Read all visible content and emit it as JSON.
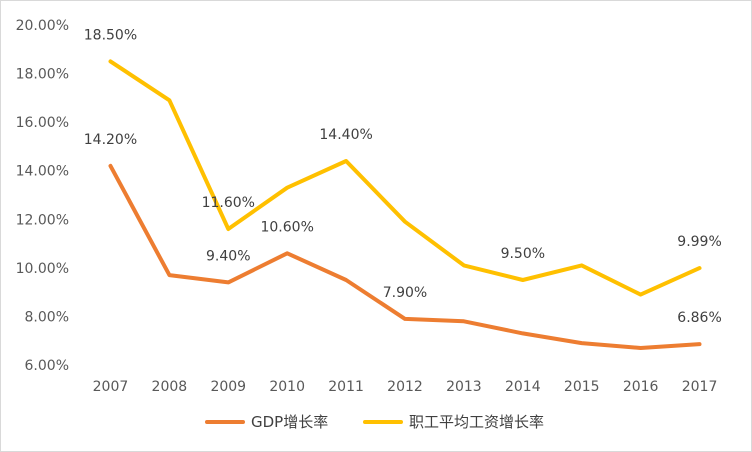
{
  "chart_data": {
    "type": "line",
    "title": "",
    "xlabel": "",
    "ylabel": "",
    "categories": [
      "2007",
      "2008",
      "2009",
      "2010",
      "2011",
      "2012",
      "2013",
      "2014",
      "2015",
      "2016",
      "2017"
    ],
    "ylim": [
      6.0,
      20.0
    ],
    "yticks": [
      6,
      8,
      10,
      12,
      14,
      16,
      18,
      20
    ],
    "ytick_labels": [
      "6.00%",
      "8.00%",
      "10.00%",
      "12.00%",
      "14.00%",
      "16.00%",
      "18.00%",
      "20.00%"
    ],
    "grid": false,
    "legend_position": "bottom",
    "series": [
      {
        "name": "GDP增长率",
        "color": "#ED7D31",
        "values": [
          14.2,
          9.7,
          9.4,
          10.6,
          9.5,
          7.9,
          7.8,
          7.3,
          6.9,
          6.7,
          6.86
        ],
        "labels": [
          {
            "index": 0,
            "text": "14.20%"
          },
          {
            "index": 2,
            "text": "9.40%"
          },
          {
            "index": 3,
            "text": "10.60%"
          },
          {
            "index": 5,
            "text": "7.90%"
          },
          {
            "index": 10,
            "text": "6.86%"
          }
        ]
      },
      {
        "name": "职工平均工资增长率",
        "color": "#FFC000",
        "values": [
          18.5,
          16.9,
          11.6,
          13.3,
          14.4,
          11.9,
          10.1,
          9.5,
          10.1,
          8.9,
          9.99
        ],
        "labels": [
          {
            "index": 0,
            "text": "18.50%"
          },
          {
            "index": 2,
            "text": "11.60%"
          },
          {
            "index": 4,
            "text": "14.40%"
          },
          {
            "index": 7,
            "text": "9.50%"
          },
          {
            "index": 10,
            "text": "9.99%"
          }
        ]
      }
    ]
  }
}
